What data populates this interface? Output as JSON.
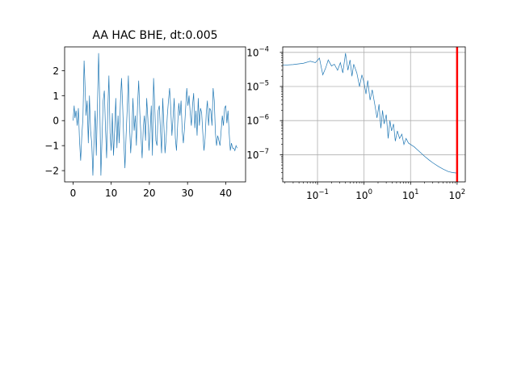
{
  "chart_data": [
    {
      "type": "line",
      "title": "AA HAC BHE, dt:0.005",
      "xlabel": "",
      "ylabel": "",
      "xlim": [
        -2.2,
        45.2
      ],
      "ylim": [
        -2.45,
        2.95
      ],
      "xticks": [
        0,
        10,
        20,
        30,
        40
      ],
      "xtick_labels": [
        "0",
        "10",
        "20",
        "30",
        "40"
      ],
      "yticks": [
        -2,
        -1,
        0,
        1,
        2
      ],
      "ytick_labels": [
        "−2",
        "−1",
        "0",
        "1",
        "2"
      ],
      "grid": false,
      "color": "#1f77b4",
      "series": [
        {
          "x": [
            0.0,
            0.3,
            0.5,
            0.8,
            1.1,
            1.4,
            1.7,
            2.0,
            2.3,
            2.6,
            2.9,
            3.1,
            3.4,
            3.7,
            4.0,
            4.3,
            4.6,
            4.9,
            5.2,
            5.5,
            5.8,
            6.1,
            6.4,
            6.7,
            7.0,
            7.3,
            7.6,
            7.9,
            8.2,
            8.5,
            8.8,
            9.1,
            9.4,
            9.7,
            10.0,
            10.3,
            10.6,
            10.9,
            11.2,
            11.5,
            11.8,
            12.1,
            12.4,
            12.7,
            13.0,
            13.3,
            13.6,
            13.9,
            14.2,
            14.5,
            14.8,
            15.1,
            15.4,
            15.7,
            16.0,
            16.3,
            16.6,
            16.9,
            17.2,
            17.5,
            17.8,
            18.1,
            18.4,
            18.7,
            19.0,
            19.3,
            19.6,
            19.9,
            20.2,
            20.5,
            20.8,
            21.1,
            21.4,
            21.7,
            22.0,
            22.3,
            22.6,
            22.9,
            23.2,
            23.5,
            23.8,
            24.1,
            24.4,
            24.7,
            25.0,
            25.3,
            25.6,
            25.9,
            26.2,
            26.5,
            26.8,
            27.1,
            27.4,
            27.7,
            28.0,
            28.3,
            28.6,
            28.9,
            29.2,
            29.5,
            29.8,
            30.1,
            30.4,
            30.7,
            31.0,
            31.3,
            31.6,
            31.9,
            32.2,
            32.5,
            32.8,
            33.1,
            33.4,
            33.7,
            34.0,
            34.3,
            34.6,
            34.9,
            35.2,
            35.5,
            35.8,
            36.1,
            36.4,
            36.7,
            37.0,
            37.3,
            37.6,
            37.9,
            38.2,
            38.5,
            38.8,
            39.1,
            39.4,
            39.7,
            40.0,
            40.3,
            40.6,
            40.9,
            41.2,
            41.5,
            41.8,
            42.1,
            42.4,
            42.7,
            43.0
          ],
          "y": [
            0.0,
            0.6,
            0.1,
            0.4,
            -0.2,
            0.5,
            -0.8,
            -1.6,
            -0.6,
            0.1,
            2.4,
            1.6,
            0.2,
            0.8,
            -0.9,
            1.0,
            -0.4,
            -0.9,
            -2.2,
            -0.8,
            0.4,
            -1.4,
            0.6,
            2.7,
            0.7,
            -2.2,
            -0.7,
            0.8,
            1.2,
            -0.3,
            -1.5,
            0.4,
            1.8,
            -0.5,
            -1.2,
            0.3,
            -1.4,
            -0.4,
            0.9,
            -1.1,
            0.2,
            -0.9,
            0.7,
            1.7,
            0.6,
            -0.8,
            -1.9,
            -0.6,
            0.5,
            1.8,
            -0.2,
            -1.3,
            -0.5,
            0.9,
            -0.4,
            0.2,
            -1.0,
            0.6,
            1.6,
            0.3,
            -0.6,
            -1.5,
            -0.3,
            0.2,
            -0.8,
            0.9,
            0.1,
            -1.2,
            -0.4,
            0.6,
            -1.4,
            1.7,
            0.6,
            -0.8,
            -1.0,
            0.4,
            0.6,
            -0.4,
            -1.3,
            0.9,
            -0.2,
            -1.3,
            -0.7,
            0.2,
            0.8,
            1.3,
            0.5,
            -0.6,
            0.1,
            0.9,
            -0.7,
            -1.2,
            -0.2,
            0.7,
            0.2,
            0.8,
            -0.4,
            -0.9,
            -0.3,
            0.5,
            1.3,
            0.6,
            1.0,
            0.3,
            -0.2,
            0.6,
            1.1,
            -0.3,
            0.4,
            -0.6,
            0.9,
            -0.2,
            0.5,
            0.3,
            -0.5,
            -1.2,
            -0.7,
            0.3,
            0.8,
            -0.2,
            0.5,
            0.4,
            -0.2,
            1.3,
            0.8,
            -0.5,
            -1.0,
            -0.6,
            -0.8,
            -1.0,
            -0.4,
            0.2,
            -0.2,
            0.5,
            0.6,
            -0.1,
            0.4,
            -0.5,
            -1.2,
            -0.9,
            -1.1,
            -1.1,
            -1.2,
            -1.0,
            -1.1
          ]
        }
      ]
    },
    {
      "type": "line",
      "title": "",
      "xlabel": "",
      "ylabel": "",
      "xscale": "log",
      "yscale": "log",
      "xlim": [
        0.0179,
        150
      ],
      "ylim": [
        1.6e-08,
        0.000145
      ],
      "xticks": [
        0.1,
        1,
        10,
        100
      ],
      "xtick_labels": [
        {
          "base": "10",
          "exp": "−1"
        },
        {
          "base": "10",
          "exp": "0"
        },
        {
          "base": "10",
          "exp": "1"
        },
        {
          "base": "10",
          "exp": "2"
        }
      ],
      "yticks": [
        1e-07,
        1e-06,
        1e-05,
        0.0001
      ],
      "ytick_labels": [
        {
          "base": "10",
          "exp": "−7"
        },
        {
          "base": "10",
          "exp": "−6"
        },
        {
          "base": "10",
          "exp": "−5"
        },
        {
          "base": "10",
          "exp": "−4"
        }
      ],
      "grid": true,
      "color": "#1f77b4",
      "vline": {
        "x": 100,
        "color": "#ff0000"
      },
      "series": [
        {
          "x": [
            0.0179,
            0.03,
            0.05,
            0.07,
            0.09,
            0.11,
            0.13,
            0.15,
            0.17,
            0.2,
            0.23,
            0.27,
            0.31,
            0.35,
            0.4,
            0.45,
            0.5,
            0.55,
            0.6,
            0.7,
            0.8,
            0.9,
            1.0,
            1.1,
            1.2,
            1.35,
            1.5,
            1.7,
            1.9,
            2.1,
            2.3,
            2.5,
            2.7,
            3.0,
            3.3,
            3.6,
            3.9,
            4.3,
            4.7,
            5.2,
            5.8,
            6.5,
            7.2,
            8.0,
            9.0,
            10.0,
            12.0,
            14.0,
            17.0,
            20.0,
            25.0,
            30.0,
            40.0,
            50.0,
            65.0,
            80.0,
            100.0
          ],
          "y": [
            4.2e-05,
            4.4e-05,
            4.8e-05,
            5.5e-05,
            5e-05,
            6.8e-05,
            2.2e-05,
            3.5e-05,
            6e-05,
            4e-05,
            4.5e-05,
            3e-05,
            5e-05,
            2.5e-05,
            9.5e-05,
            3e-05,
            6e-05,
            2e-05,
            4.5e-05,
            2.5e-05,
            1e-05,
            2.2e-05,
            1.3e-05,
            6e-06,
            1.5e-05,
            4e-06,
            8e-06,
            3e-06,
            1.2e-06,
            3e-06,
            6e-07,
            2e-06,
            8e-07,
            1.5e-06,
            3e-07,
            1e-06,
            5e-07,
            8e-07,
            2.5e-07,
            5e-07,
            3e-07,
            4e-07,
            2e-07,
            3e-07,
            2.2e-07,
            2e-07,
            1.7e-07,
            1.4e-07,
            1.1e-07,
            9e-08,
            7e-08,
            5.8e-08,
            4.5e-08,
            3.8e-08,
            3.2e-08,
            3e-08,
            2.9e-08
          ]
        }
      ]
    }
  ]
}
